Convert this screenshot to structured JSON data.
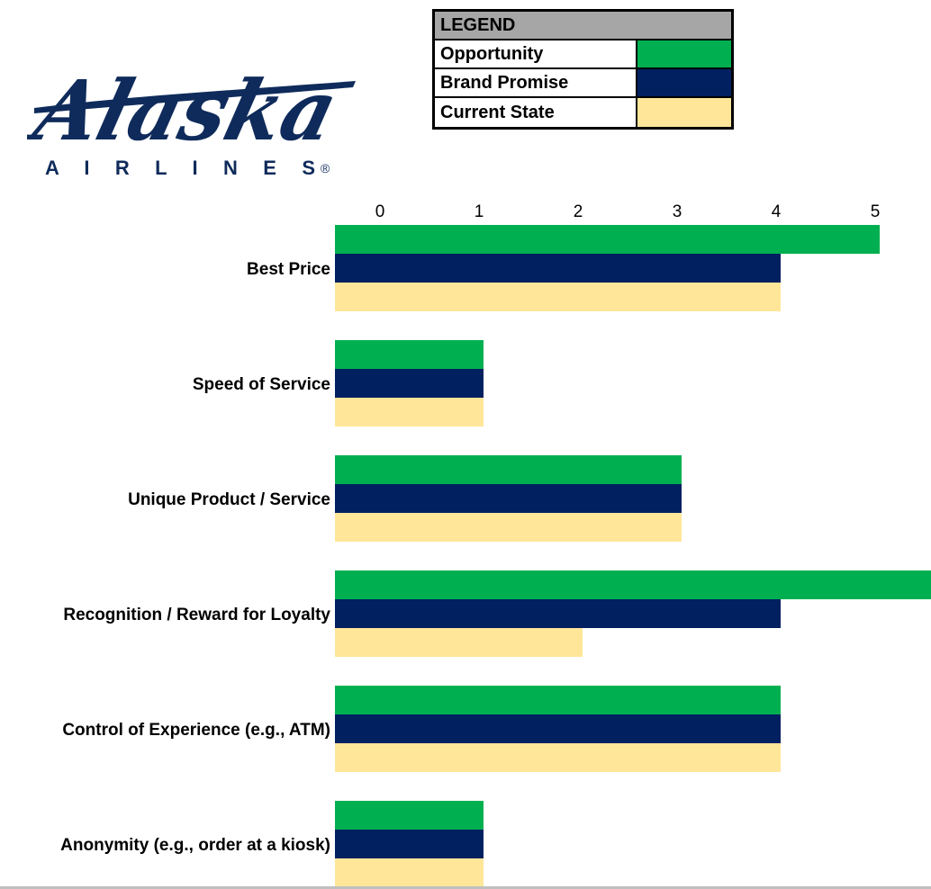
{
  "logo": {
    "wordmark": "Alaska",
    "subtitle": "AIRLINES",
    "registered": "®",
    "color": "#0f2b5b"
  },
  "legend": {
    "header": "LEGEND",
    "items": [
      {
        "label": "Opportunity",
        "color": "#00b050"
      },
      {
        "label": "Brand Promise",
        "color": "#002060"
      },
      {
        "label": "Current State",
        "color": "#ffe699"
      }
    ]
  },
  "chart_data": {
    "type": "bar",
    "orientation": "horizontal",
    "categories": [
      "Best Price",
      "Speed of Service",
      "Unique Product / Service",
      "Recognition / Reward for Loyalty",
      "Control of Experience (e.g., ATM)",
      "Anonymity (e.g., order at a kiosk)"
    ],
    "series": [
      {
        "name": "Opportunity",
        "color": "#00b050",
        "values": [
          5,
          1,
          3,
          6,
          4,
          1
        ]
      },
      {
        "name": "Brand Promise",
        "color": "#002060",
        "values": [
          4,
          1,
          3,
          4,
          4,
          1
        ]
      },
      {
        "name": "Current State",
        "color": "#ffe699",
        "values": [
          4,
          1,
          3,
          2,
          4,
          1
        ]
      }
    ],
    "x_ticks": [
      "0",
      "1",
      "2",
      "3",
      "4",
      "5"
    ],
    "xlim": [
      -0.5,
      5.5
    ],
    "grid": false,
    "legend_position": "top"
  }
}
